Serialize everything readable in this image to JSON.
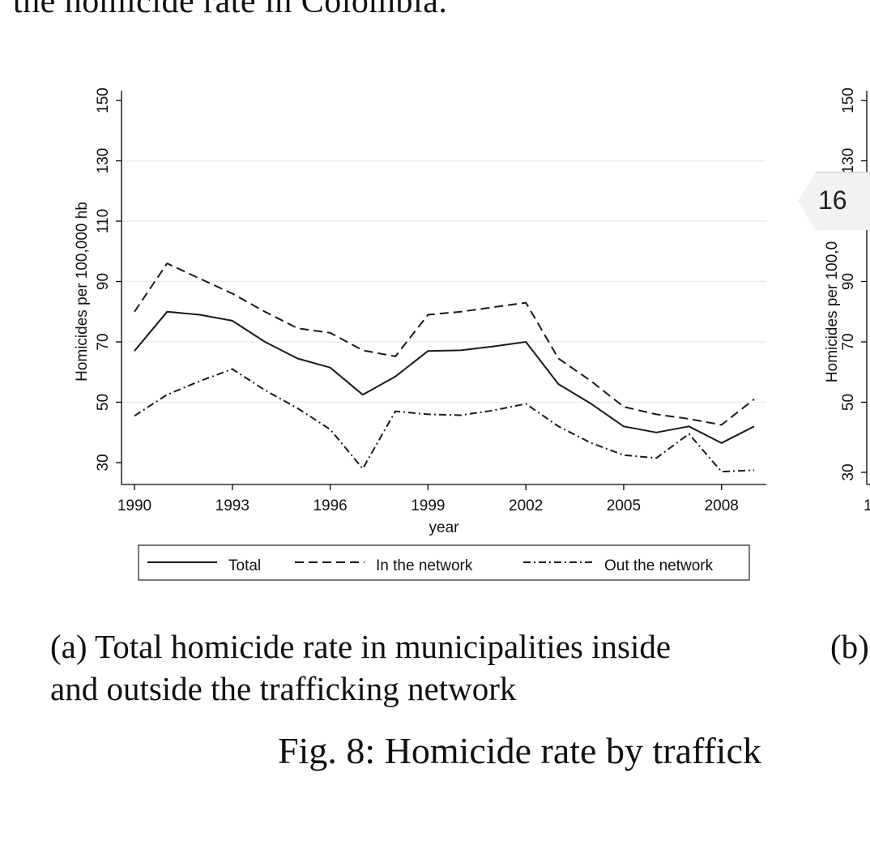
{
  "top_text": "the homicide rate in Colombia.",
  "page_badge": "16",
  "caption_a": {
    "line1": "(a) Total homicide rate in municipalities inside",
    "line2": "and outside the trafficking network"
  },
  "caption_b": "(b)",
  "figure_caption": "Fig. 8: Homicide rate by traffick",
  "chart_data": [
    {
      "type": "line",
      "xlabel": "year",
      "ylabel": "Homicides per 100,000 hb",
      "xlim": [
        1990,
        2009
      ],
      "ylim": [
        30,
        150
      ],
      "x_ticks": [
        1990,
        1993,
        1996,
        1999,
        2002,
        2005,
        2008
      ],
      "y_ticks": [
        30,
        50,
        70,
        90,
        110,
        130,
        150
      ],
      "grid": "horizontal",
      "legend": "bottom",
      "x": [
        1990,
        1991,
        1992,
        1993,
        1994,
        1995,
        1996,
        1997,
        1998,
        1999,
        2000,
        2001,
        2002,
        2003,
        2004,
        2005,
        2006,
        2007,
        2008,
        2009
      ],
      "series": [
        {
          "name": "Total",
          "style": "solid",
          "values": [
            67,
            80,
            79,
            77,
            70,
            64.5,
            61.5,
            52.5,
            58.5,
            67,
            67.2,
            68.5,
            70,
            56,
            49.5,
            42,
            40,
            42,
            36.5,
            42
          ]
        },
        {
          "name": "In the network",
          "style": "dashed",
          "values": [
            80,
            96,
            91,
            86,
            80,
            74.5,
            73,
            67.2,
            65.2,
            79,
            80,
            81.5,
            83,
            64.5,
            57,
            48.5,
            46,
            44.5,
            42.5,
            51
          ]
        },
        {
          "name": "Out the network",
          "style": "dashdot",
          "values": [
            45.5,
            52.5,
            57,
            61,
            54,
            48,
            41,
            28,
            47,
            46,
            45.7,
            47.3,
            49.5,
            42,
            36.5,
            32.5,
            31.5,
            39.5,
            27,
            27.5
          ]
        }
      ]
    },
    {
      "type": "line",
      "ylabel": "Homicides per 100,0",
      "y_ticks": [
        30,
        50,
        70,
        90,
        130,
        150
      ],
      "x_ticks": [
        "1"
      ]
    }
  ]
}
